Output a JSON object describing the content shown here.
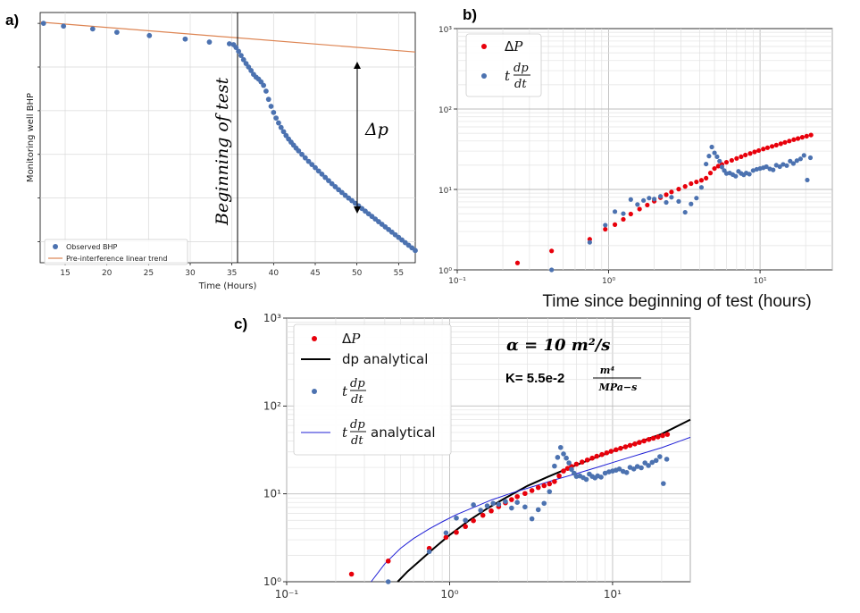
{
  "panel_labels": [
    "a)",
    "b)",
    "c)"
  ],
  "chart_data": [
    {
      "id": "a",
      "type": "scatter",
      "xlabel": "Time (Hours)",
      "ylabel": "Monitoring well BHP",
      "xlim": [
        12,
        57
      ],
      "x_ticks": [
        15,
        20,
        25,
        30,
        35,
        40,
        45,
        50,
        55
      ],
      "y_tick_labels_shown": false,
      "grid": true,
      "legend_position": "lower-left",
      "series": [
        {
          "name": "Observed BHP",
          "kind": "markers",
          "color": "#4c72b0",
          "x": [
            12.4,
            14.8,
            18.3,
            21.2,
            25.1,
            29.4,
            32.3,
            34.7,
            35.2,
            35.5,
            35.8,
            36.1,
            36.4,
            36.7,
            37.0,
            37.3,
            37.6,
            37.9,
            38.2,
            38.5,
            38.8,
            39.1,
            39.4,
            39.7,
            40.0,
            40.3,
            40.6,
            40.9,
            41.2,
            41.5,
            41.8,
            42.1,
            42.4,
            42.7,
            43.0,
            43.4,
            43.8,
            44.2,
            44.6,
            45.0,
            45.4,
            45.8,
            46.2,
            46.6,
            47.0,
            47.4,
            47.8,
            48.2,
            48.6,
            49.0,
            49.4,
            49.8,
            50.2,
            50.6,
            51.0,
            51.4,
            51.8,
            52.2,
            52.6,
            53.0,
            53.4,
            53.8,
            54.2,
            54.6,
            55.0,
            55.4,
            55.8,
            56.2,
            56.6,
            57.0
          ],
          "y": [
            0.0,
            -0.16,
            -0.32,
            -0.51,
            -0.7,
            -0.9,
            -1.07,
            -1.17,
            -1.22,
            -1.38,
            -1.6,
            -1.84,
            -2.08,
            -2.3,
            -2.5,
            -2.7,
            -2.92,
            -3.08,
            -3.19,
            -3.35,
            -3.55,
            -3.88,
            -4.35,
            -4.75,
            -5.1,
            -5.42,
            -5.7,
            -5.96,
            -6.2,
            -6.42,
            -6.62,
            -6.8,
            -6.97,
            -7.14,
            -7.3,
            -7.5,
            -7.7,
            -7.9,
            -8.08,
            -8.26,
            -8.45,
            -8.63,
            -8.82,
            -9.0,
            -9.18,
            -9.35,
            -9.52,
            -9.68,
            -9.84,
            -10.0,
            -10.15,
            -10.3,
            -10.45,
            -10.6,
            -10.75,
            -10.9,
            -11.05,
            -11.2,
            -11.35,
            -11.5,
            -11.65,
            -11.8,
            -11.95,
            -12.1,
            -12.25,
            -12.4,
            -12.55,
            -12.7,
            -12.85,
            -13.0
          ]
        },
        {
          "name": "Pre-interference linear trend",
          "kind": "line",
          "color": "#dd8452",
          "x": [
            12,
            57
          ],
          "y": [
            0.07,
            -1.64
          ]
        }
      ],
      "annotations": {
        "vertical_line_x": 35.3,
        "vertical_label": "Beginning of test",
        "arrow_x": 50,
        "arrow_label": "Δp"
      }
    },
    {
      "id": "b",
      "type": "scatter",
      "xscale": "log",
      "yscale": "log",
      "xlim": [
        0.1,
        30
      ],
      "ylim": [
        1,
        1000
      ],
      "x_tick_labels": [
        "10⁻¹",
        "10⁰",
        "10¹"
      ],
      "y_tick_labels": [
        "10⁰",
        "10¹",
        "10²",
        "10³"
      ],
      "xlabel": "Time since beginning of test (hours)",
      "ylabel": "",
      "grid": true,
      "legend_position": "top-left",
      "series": [
        {
          "name": "ΔP",
          "color": "#e8000b",
          "x": [
            0.25,
            0.42,
            0.75,
            0.95,
            1.1,
            1.25,
            1.4,
            1.6,
            1.8,
            2.0,
            2.2,
            2.4,
            2.6,
            2.9,
            3.2,
            3.5,
            3.8,
            4.1,
            4.4,
            4.7,
            5.0,
            5.3,
            5.6,
            6.0,
            6.5,
            7.0,
            7.5,
            8.0,
            8.6,
            9.2,
            9.8,
            10.5,
            11.2,
            12.0,
            12.8,
            13.7,
            14.6,
            15.6,
            16.7,
            17.8,
            19.0,
            20.3,
            21.7
          ],
          "y": [
            1.22,
            1.72,
            2.4,
            3.2,
            3.65,
            4.25,
            4.95,
            5.7,
            6.4,
            7.15,
            7.9,
            8.6,
            9.3,
            10.1,
            10.9,
            11.8,
            12.4,
            13.0,
            13.8,
            16.0,
            18.2,
            19.5,
            20.5,
            21.8,
            23.0,
            24.3,
            25.5,
            26.8,
            28.0,
            29.3,
            30.5,
            31.8,
            33.0,
            34.3,
            35.6,
            37.0,
            38.5,
            40.0,
            41.6,
            43.0,
            44.5,
            46.0,
            47.5
          ]
        },
        {
          "name": "t dp/dt",
          "color": "#4c72b0",
          "x": [
            0.42,
            0.75,
            0.95,
            1.1,
            1.25,
            1.4,
            1.55,
            1.7,
            1.85,
            2.0,
            2.2,
            2.4,
            2.6,
            2.9,
            3.2,
            3.5,
            3.8,
            4.1,
            4.4,
            4.6,
            4.8,
            5.0,
            5.2,
            5.4,
            5.6,
            5.8,
            6.0,
            6.3,
            6.6,
            6.9,
            7.2,
            7.5,
            7.8,
            8.1,
            8.5,
            9.0,
            9.5,
            10.0,
            10.5,
            11.0,
            11.6,
            12.2,
            12.8,
            13.5,
            14.2,
            15.0,
            15.8,
            16.6,
            17.5,
            18.5,
            19.5,
            20.5,
            21.5
          ],
          "y": [
            1.0,
            2.2,
            3.6,
            5.3,
            5.0,
            7.5,
            6.5,
            7.3,
            7.8,
            7.6,
            8.2,
            6.9,
            8.0,
            7.1,
            5.2,
            6.6,
            7.8,
            10.6,
            20.7,
            26.0,
            33.7,
            28.5,
            25.5,
            22.5,
            19.0,
            17.2,
            15.8,
            16.0,
            15.3,
            14.6,
            16.8,
            15.8,
            15.2,
            16.0,
            15.5,
            17.2,
            17.8,
            18.2,
            18.6,
            19.2,
            18.0,
            17.5,
            20.0,
            19.2,
            20.5,
            19.8,
            22.5,
            21.0,
            22.8,
            24.0,
            26.5,
            13.1,
            24.8
          ]
        }
      ]
    },
    {
      "id": "c",
      "type": "scatter",
      "xscale": "log",
      "yscale": "log",
      "xlim": [
        0.1,
        30
      ],
      "ylim": [
        1,
        1000
      ],
      "x_tick_labels": [
        "10⁻¹",
        "10⁰",
        "10¹"
      ],
      "y_tick_labels": [
        "10⁰",
        "10¹",
        "10²",
        "10³"
      ],
      "xlabel": "",
      "ylabel": "",
      "grid": true,
      "legend_position": "top-left",
      "series": [
        {
          "name": "ΔP",
          "kind": "markers",
          "color": "#e8000b",
          "x": [
            0.25,
            0.42,
            0.75,
            0.95,
            1.1,
            1.25,
            1.4,
            1.6,
            1.8,
            2.0,
            2.2,
            2.4,
            2.6,
            2.9,
            3.2,
            3.5,
            3.8,
            4.1,
            4.4,
            4.7,
            5.0,
            5.3,
            5.6,
            6.0,
            6.5,
            7.0,
            7.5,
            8.0,
            8.6,
            9.2,
            9.8,
            10.5,
            11.2,
            12.0,
            12.8,
            13.7,
            14.6,
            15.6,
            16.7,
            17.8,
            19.0,
            20.3,
            21.7
          ],
          "y": [
            1.22,
            1.72,
            2.4,
            3.2,
            3.65,
            4.25,
            4.95,
            5.7,
            6.4,
            7.15,
            7.9,
            8.6,
            9.3,
            10.1,
            10.9,
            11.8,
            12.4,
            13.0,
            13.8,
            16.0,
            18.2,
            19.5,
            20.5,
            21.8,
            23.0,
            24.3,
            25.5,
            26.8,
            28.0,
            29.3,
            30.5,
            31.8,
            33.0,
            34.3,
            35.6,
            37.0,
            38.5,
            40.0,
            41.6,
            43.0,
            44.5,
            46.0,
            47.5
          ]
        },
        {
          "name": "dp analytical",
          "kind": "line",
          "color": "#000000",
          "x": [
            0.48,
            0.55,
            0.65,
            0.8,
            1.0,
            1.3,
            1.7,
            2.2,
            3.0,
            4.0,
            5.5,
            7.5,
            10,
            14,
            20,
            30
          ],
          "y": [
            1.0,
            1.3,
            1.7,
            2.4,
            3.4,
            4.9,
            6.8,
            9.0,
            12.3,
            15.6,
            20.0,
            25.0,
            30.5,
            38.0,
            48.0,
            70.0
          ]
        },
        {
          "name": "t dp/dt",
          "kind": "markers",
          "color": "#4c72b0",
          "x": [
            0.42,
            0.75,
            0.95,
            1.1,
            1.25,
            1.4,
            1.55,
            1.7,
            1.85,
            2.0,
            2.2,
            2.4,
            2.6,
            2.9,
            3.2,
            3.5,
            3.8,
            4.1,
            4.4,
            4.6,
            4.8,
            5.0,
            5.2,
            5.4,
            5.6,
            5.8,
            6.0,
            6.3,
            6.6,
            6.9,
            7.2,
            7.5,
            7.8,
            8.1,
            8.5,
            9.0,
            9.5,
            10.0,
            10.5,
            11.0,
            11.6,
            12.2,
            12.8,
            13.5,
            14.2,
            15.0,
            15.8,
            16.6,
            17.5,
            18.5,
            19.5,
            20.5,
            21.5
          ],
          "y": [
            1.0,
            2.2,
            3.6,
            5.3,
            5.0,
            7.5,
            6.5,
            7.3,
            7.8,
            7.6,
            8.2,
            6.9,
            8.0,
            7.1,
            5.2,
            6.6,
            7.8,
            10.6,
            20.7,
            26.0,
            33.7,
            28.5,
            25.5,
            22.5,
            19.0,
            17.2,
            15.8,
            16.0,
            15.3,
            14.6,
            16.8,
            15.8,
            15.2,
            16.0,
            15.5,
            17.2,
            17.8,
            18.2,
            18.6,
            19.2,
            18.0,
            17.5,
            20.0,
            19.2,
            20.5,
            19.8,
            22.5,
            21.0,
            22.8,
            24.0,
            26.5,
            13.1,
            24.8
          ]
        },
        {
          "name": "t dp/dt analytical",
          "kind": "line",
          "color": "#1f1fd6",
          "x": [
            0.33,
            0.4,
            0.5,
            0.6,
            0.75,
            0.9,
            1.1,
            1.4,
            1.8,
            2.4,
            3.2,
            4.5,
            6,
            8,
            11,
            15,
            20,
            30
          ],
          "y": [
            1.0,
            1.6,
            2.4,
            3.1,
            4.0,
            4.8,
            5.8,
            7.0,
            8.5,
            10.2,
            12.0,
            14.6,
            17.0,
            20.0,
            24.0,
            28.5,
            33.5,
            44.0
          ]
        }
      ],
      "annotations": {
        "alpha_text": "α = 10 m²/s",
        "k_prefix": "K= 5.5e-2",
        "k_numerator": "m⁴",
        "k_denominator": "MPa−s"
      }
    }
  ],
  "legend_b": [
    "ΔP",
    "t dp/dt"
  ],
  "legend_c": [
    "ΔP",
    "dp analytical",
    "t dp/dt",
    "t dp/dt analytical"
  ]
}
